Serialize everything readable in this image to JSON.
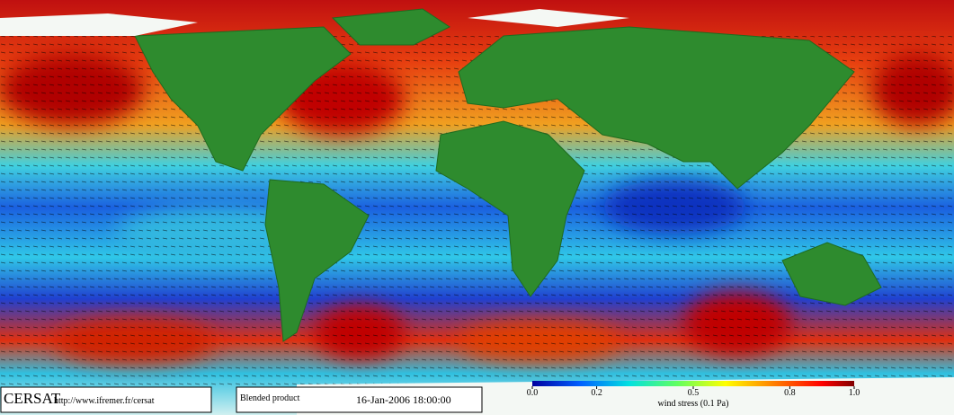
{
  "logo": {
    "name": "CERSAT",
    "url": "http://www.ifremer.fr/cersat"
  },
  "product": {
    "name": "Blended product",
    "date": "16-Jan-2006 18:00:00"
  },
  "colorbar": {
    "title": "wind stress (0.1 Pa)",
    "ticks": [
      {
        "value": 0,
        "label": "0.0"
      },
      {
        "value": 0.2,
        "label": "0.2"
      },
      {
        "value": 0.5,
        "label": "0.5"
      },
      {
        "value": 0.8,
        "label": "0.8"
      },
      {
        "value": 1,
        "label": "1.0"
      }
    ]
  }
}
